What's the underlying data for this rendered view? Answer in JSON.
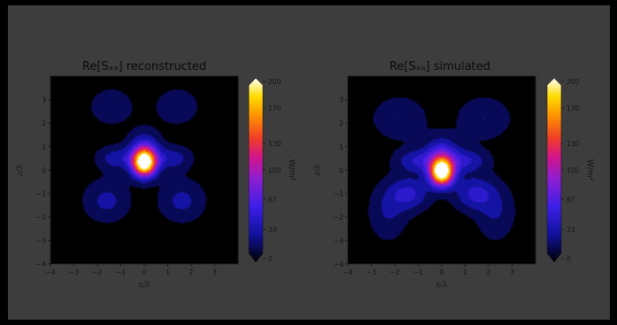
{
  "chart_data": [
    {
      "type": "heatmap",
      "title": "Re[S_xz] reconstructed",
      "title_math": "Re[Sₓₐ]",
      "title_text": "reconstructed",
      "xlabel": "x/λ",
      "ylabel": "z/λ",
      "xlim": [
        -4,
        4
      ],
      "ylim": [
        -4,
        4
      ],
      "xticks": [
        "−4",
        "−3",
        "−2",
        "−1",
        "0",
        "1",
        "2",
        "3"
      ],
      "yticks": [
        "3",
        "2",
        "1",
        "0",
        "−1",
        "−2",
        "−3",
        "−4"
      ],
      "colorbar": {
        "label": "W/m²",
        "range": [
          0,
          200
        ],
        "ticks": [
          "200",
          "170",
          "130",
          "100",
          "67",
          "33",
          "0"
        ],
        "colormap": "gnuplot2"
      },
      "blobs": [
        {
          "x": 0.0,
          "z": 0.3,
          "sx": 0.35,
          "sz": 0.4,
          "amp": 205
        },
        {
          "x": 0.0,
          "z": 0.8,
          "sx": 0.45,
          "sz": 0.55,
          "amp": 55
        },
        {
          "x": -1.2,
          "z": 0.5,
          "sx": 0.55,
          "sz": 0.35,
          "amp": 35
        },
        {
          "x": 1.2,
          "z": 0.5,
          "sx": 0.55,
          "sz": 0.35,
          "amp": 35
        },
        {
          "x": -1.6,
          "z": -1.3,
          "sx": 0.65,
          "sz": 0.6,
          "amp": 30
        },
        {
          "x": 1.6,
          "z": -1.3,
          "sx": 0.65,
          "sz": 0.6,
          "amp": 30
        },
        {
          "x": -1.4,
          "z": 2.7,
          "sx": 0.65,
          "sz": 0.55,
          "amp": 20
        },
        {
          "x": 1.4,
          "z": 2.7,
          "sx": 0.65,
          "sz": 0.55,
          "amp": 20
        }
      ]
    },
    {
      "type": "heatmap",
      "title": "Re[S_xz] simulated",
      "title_math": "Re[Sₓₐ]",
      "title_text": "simulated",
      "xlabel": "x/λ",
      "ylabel": "z/λ",
      "xlim": [
        -4,
        4
      ],
      "ylim": [
        -4,
        4
      ],
      "xticks": [
        "−4",
        "−3",
        "−2",
        "−1",
        "0",
        "1",
        "2",
        "3"
      ],
      "yticks": [
        "3",
        "2",
        "1",
        "0",
        "−1",
        "−2",
        "−3",
        "−4"
      ],
      "colorbar": {
        "label": "W/m²",
        "range": [
          0,
          200
        ],
        "ticks": [
          "200",
          "170",
          "130",
          "100",
          "67",
          "33",
          "0"
        ],
        "colormap": "gnuplot2"
      },
      "blobs": [
        {
          "x": 0.0,
          "z": -0.1,
          "sx": 0.35,
          "sz": 0.4,
          "amp": 215
        },
        {
          "x": 0.0,
          "z": 0.6,
          "sx": 0.5,
          "sz": 0.55,
          "amp": 60
        },
        {
          "x": -1.1,
          "z": 0.4,
          "sx": 0.6,
          "sz": 0.35,
          "amp": 40
        },
        {
          "x": 1.1,
          "z": 0.4,
          "sx": 0.6,
          "sz": 0.35,
          "amp": 40
        },
        {
          "x": -1.4,
          "z": -1.0,
          "sx": 0.6,
          "sz": 0.5,
          "amp": 45
        },
        {
          "x": 1.4,
          "z": -1.0,
          "sx": 0.6,
          "sz": 0.5,
          "amp": 45
        },
        {
          "x": -2.3,
          "z": -1.8,
          "sx": 0.55,
          "sz": 0.8,
          "amp": 25
        },
        {
          "x": 2.3,
          "z": -1.8,
          "sx": 0.55,
          "sz": 0.8,
          "amp": 25
        },
        {
          "x": -1.8,
          "z": 2.2,
          "sx": 0.75,
          "sz": 0.6,
          "amp": 25
        },
        {
          "x": 1.8,
          "z": 2.2,
          "sx": 0.75,
          "sz": 0.6,
          "amp": 25
        }
      ]
    }
  ]
}
